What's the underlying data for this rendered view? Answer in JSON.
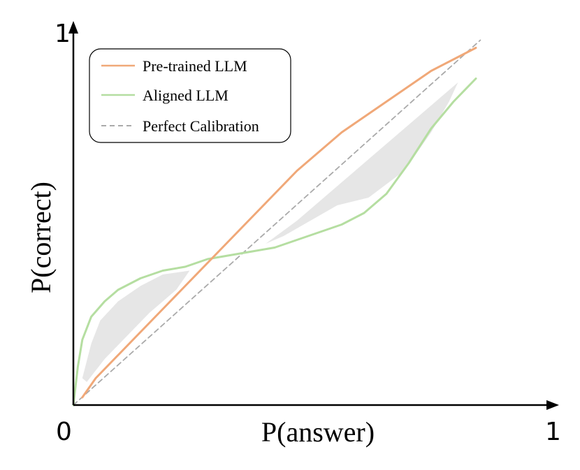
{
  "chart_data": {
    "type": "line",
    "xlabel": "P(answer)",
    "ylabel": "P(correct)",
    "xlim": [
      0,
      1
    ],
    "ylim": [
      0,
      1
    ],
    "x_ticks": [
      "0",
      "1"
    ],
    "y_ticks": [
      "1"
    ],
    "grid": false,
    "legend_position": "top-left",
    "series": [
      {
        "name": "Pre-trained LLM",
        "color": "#f0a878",
        "style": "solid",
        "x": [
          0.02,
          0.05,
          0.1,
          0.15,
          0.2,
          0.25,
          0.3,
          0.35,
          0.4,
          0.45,
          0.5,
          0.55,
          0.6,
          0.65,
          0.7,
          0.75,
          0.8,
          0.85,
          0.9
        ],
        "y": [
          0.02,
          0.07,
          0.13,
          0.19,
          0.25,
          0.31,
          0.37,
          0.43,
          0.49,
          0.55,
          0.61,
          0.66,
          0.71,
          0.75,
          0.79,
          0.83,
          0.87,
          0.9,
          0.93
        ]
      },
      {
        "name": "Aligned LLM",
        "color": "#b5dea1",
        "style": "solid",
        "x": [
          0.0,
          0.01,
          0.02,
          0.04,
          0.07,
          0.1,
          0.15,
          0.2,
          0.25,
          0.3,
          0.35,
          0.4,
          0.45,
          0.5,
          0.55,
          0.6,
          0.65,
          0.7,
          0.75,
          0.8,
          0.85,
          0.9
        ],
        "y": [
          0.0,
          0.1,
          0.17,
          0.23,
          0.27,
          0.3,
          0.33,
          0.35,
          0.36,
          0.38,
          0.39,
          0.4,
          0.41,
          0.43,
          0.45,
          0.47,
          0.5,
          0.55,
          0.63,
          0.72,
          0.79,
          0.85
        ]
      },
      {
        "name": "Perfect Calibration",
        "color": "#aaaaaa",
        "style": "dashed",
        "x": [
          0,
          0.91
        ],
        "y": [
          0,
          0.95
        ]
      }
    ],
    "shaded_regions": [
      {
        "color": "#e6e6e6",
        "x": [
          0.02,
          0.04,
          0.06,
          0.1,
          0.15,
          0.2,
          0.26,
          0.23,
          0.17,
          0.12,
          0.07,
          0.03
        ],
        "y": [
          0.07,
          0.16,
          0.22,
          0.27,
          0.31,
          0.34,
          0.35,
          0.3,
          0.24,
          0.18,
          0.12,
          0.06
        ]
      },
      {
        "color": "#e6e6e6",
        "x": [
          0.43,
          0.5,
          0.6,
          0.65,
          0.7,
          0.75,
          0.8,
          0.86,
          0.84,
          0.8,
          0.74,
          0.66,
          0.59,
          0.53,
          0.47
        ],
        "y": [
          0.42,
          0.48,
          0.58,
          0.63,
          0.68,
          0.73,
          0.78,
          0.84,
          0.79,
          0.71,
          0.61,
          0.54,
          0.52,
          0.48,
          0.44
        ]
      }
    ]
  }
}
